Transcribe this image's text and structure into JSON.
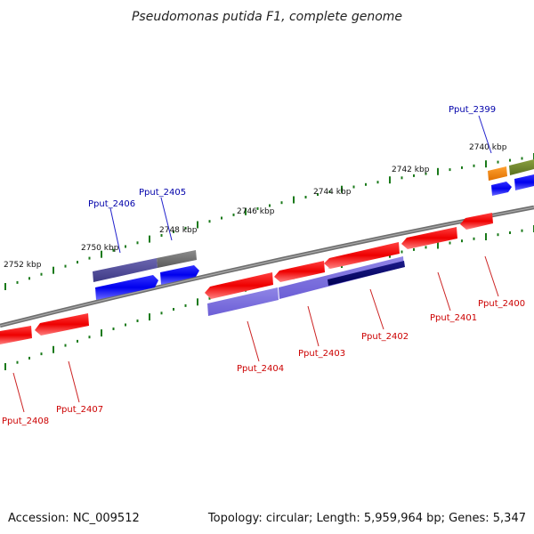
{
  "title": "Pseudomonas putida F1, complete genome",
  "footer": {
    "accession": "Accession: NC_009512",
    "summary": "Topology: circular; Length: 5,959,964 bp; Genes: 5,347"
  },
  "colors": {
    "backbone": "#808080",
    "tick": "#1a7a1a",
    "forward_label": "#0000aa",
    "reverse_label": "#cc0000"
  },
  "ruler_marks": [
    "2740 kbp",
    "2742 kbp",
    "2744 kbp",
    "2746 kbp",
    "2748 kbp",
    "2750 kbp",
    "2752 kbp"
  ],
  "forward_labels": [
    "Pput_2399",
    "Pput_2405",
    "Pput_2406"
  ],
  "reverse_labels": [
    "Pput_2400",
    "Pput_2401",
    "Pput_2402",
    "Pput_2403",
    "Pput_2404",
    "Pput_2407",
    "Pput_2408"
  ]
}
